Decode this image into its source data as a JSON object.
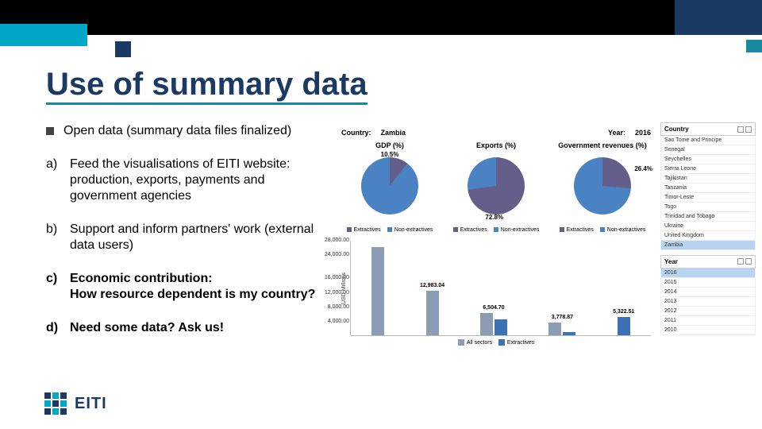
{
  "slide": {
    "title": "Use of summary data",
    "colors": {
      "accent_navy": "#1b3a63",
      "accent_cyan": "#00a6c5",
      "accent_teal": "#188a9e",
      "black": "#000000"
    }
  },
  "bullets": {
    "sq": "Open data (summary data files finalized)",
    "a": "Feed the visualisations of EITI website: production, exports, payments and government agencies",
    "b": "Support and inform partners' work (external data users)",
    "c1": "Economic contribution:",
    "c2": "How resource dependent is my country?",
    "d": "Need some data? Ask us!"
  },
  "filter": {
    "country_label": "Country:",
    "country_value": "Zambia",
    "year_label": "Year:",
    "year_value": "2016"
  },
  "pies": {
    "legend_a": "Extractives",
    "legend_b": "Non-extractives",
    "gdp": {
      "title": "GDP (%)",
      "pct_label": "10.5%",
      "extractives_deg": 38,
      "color_ext": "#635f8a",
      "color_non": "#4a82c4",
      "label_pos": "top"
    },
    "exports": {
      "title": "Exports (%)",
      "pct_label": "72.8%",
      "extractives_deg": 262,
      "color_ext": "#635f8a",
      "color_non": "#4a82c4",
      "label_pos": "bottom"
    },
    "govrev": {
      "title": "Government revenues (%)",
      "pct_label": "26.4%",
      "extractives_deg": 95,
      "color_ext": "#635f8a",
      "color_non": "#4a82c4",
      "label_pos": "right"
    }
  },
  "bar_chart": {
    "yaxis_label": "USD Millions",
    "yticks": [
      "28,000.00",
      "24,000.00",
      "",
      "16,000.00",
      "12,000.00",
      "8,000.00",
      "4,000.00",
      ""
    ],
    "ymax": 28000,
    "legend_all": "All sectors",
    "legend_ext": "Extractives",
    "color_all": "#8a9db5",
    "color_ext": "#3d71b5",
    "groups": [
      {
        "label": "",
        "all": 26000,
        "ext": null,
        "show_label": false
      },
      {
        "label": "12,983.04",
        "all": 12983,
        "ext": null,
        "show_label": true
      },
      {
        "label": "6,504.70",
        "all": 6505,
        "ext": 4738,
        "ext_label": "4,738.20",
        "show_label": true
      },
      {
        "label": "3,778.87",
        "all": 3779,
        "ext": 938,
        "ext_label": "938.00",
        "show_label": true
      },
      {
        "label": "5,322.51",
        "all": null,
        "ext": 5323,
        "show_label": true,
        "standalone_ext": true
      }
    ]
  },
  "country_list": {
    "header": "Country",
    "items": [
      "Sao Tome and Principe",
      "Senegal",
      "Seychelles",
      "Sierra Leone",
      "Tajikistan",
      "Tanzania",
      "Timor-Leste",
      "Togo",
      "Trinidad and Tobago",
      "Ukraine",
      "United Kingdom",
      "Zambia"
    ],
    "selected": "Zambia",
    "year_header": "Year",
    "years": [
      "2016",
      "2015",
      "2014",
      "2013",
      "2012",
      "2011",
      "2010"
    ],
    "year_selected": "2016"
  },
  "logo": {
    "text": "EITI"
  }
}
